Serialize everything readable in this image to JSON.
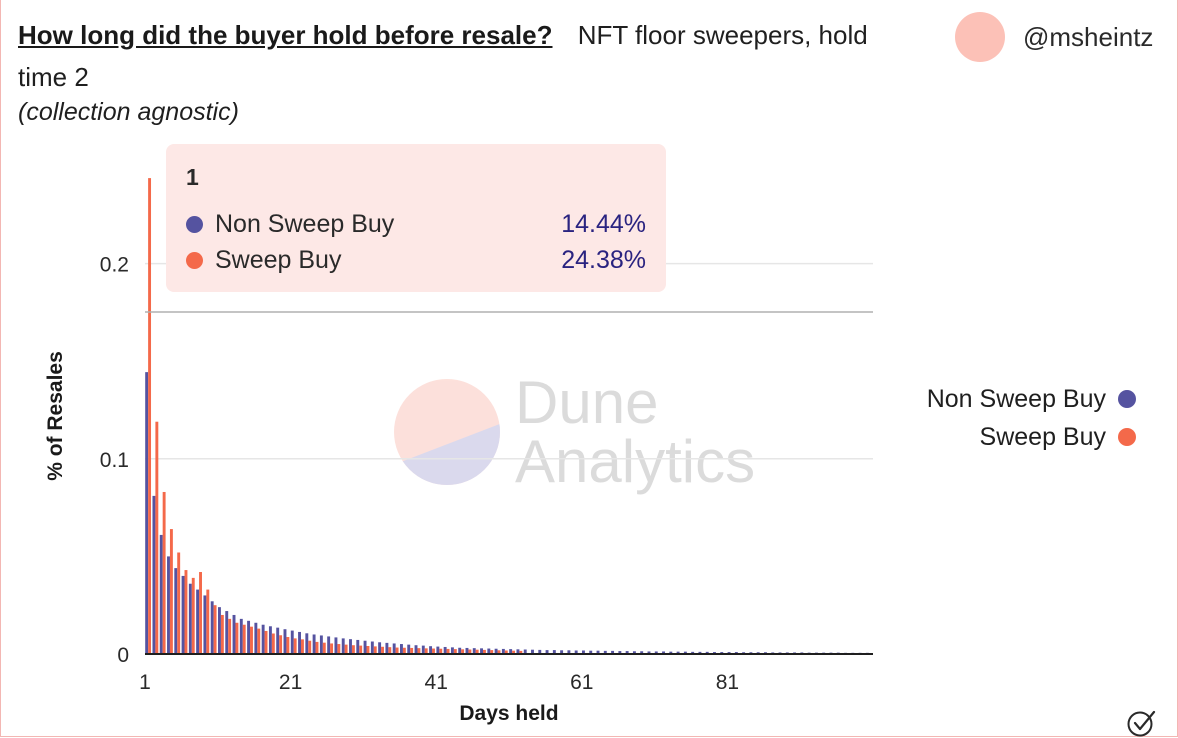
{
  "header": {
    "title": "How long did the buyer hold before resale?",
    "subtitle": "NFT floor sweepers, hold time 2",
    "note": "(collection agnostic)"
  },
  "user": {
    "handle": "@msheintz",
    "avatar_color": "#fcc1b7"
  },
  "watermark": {
    "line1": "Dune",
    "line2": "Analytics"
  },
  "tooltip": {
    "title": "1",
    "rows": [
      {
        "name": "Non Sweep Buy",
        "value": "14.44%"
      },
      {
        "name": "Sweep Buy",
        "value": "24.38%"
      }
    ]
  },
  "chart_data": {
    "type": "bar",
    "xlabel": "Days held",
    "ylabel": "% of Resales",
    "x_ticks": [
      "1",
      "21",
      "41",
      "61",
      "81"
    ],
    "y_ticks": [
      "0",
      "0.1",
      "0.2"
    ],
    "ylim": [
      0,
      0.25
    ],
    "xlim": [
      1,
      100
    ],
    "grid": true,
    "legend": "right",
    "colors": {
      "non_sweep": "#5553a0",
      "sweep": "#f4694a"
    },
    "series": [
      {
        "name": "Non Sweep Buy",
        "color": "#5553a0",
        "x": [
          1,
          2,
          3,
          4,
          5,
          6,
          7,
          8,
          9,
          10,
          11,
          12,
          13,
          14,
          15,
          16,
          17,
          18,
          19,
          20,
          21,
          22,
          23,
          24,
          25,
          26,
          27,
          28,
          29,
          30,
          31,
          32,
          33,
          34,
          35,
          36,
          37,
          38,
          39,
          40,
          41,
          42,
          43,
          44,
          45,
          46,
          47,
          48,
          49,
          50,
          51,
          52,
          53,
          54,
          55,
          56,
          57,
          58,
          59,
          60,
          61,
          62,
          63,
          64,
          65,
          66,
          67,
          68,
          69,
          70,
          71,
          72,
          73,
          74,
          75,
          76,
          77,
          78,
          79,
          80,
          81,
          82,
          83,
          84,
          85,
          86,
          87,
          88,
          89,
          90,
          91,
          92,
          93,
          94,
          95,
          96,
          97,
          98,
          99,
          100
        ],
        "values": [
          0.1444,
          0.081,
          0.061,
          0.05,
          0.044,
          0.04,
          0.036,
          0.033,
          0.03,
          0.027,
          0.024,
          0.022,
          0.02,
          0.018,
          0.017,
          0.016,
          0.015,
          0.0142,
          0.0135,
          0.0127,
          0.012,
          0.0113,
          0.0106,
          0.01,
          0.0095,
          0.009,
          0.0085,
          0.008,
          0.0076,
          0.0072,
          0.0068,
          0.0064,
          0.006,
          0.0057,
          0.0054,
          0.0051,
          0.0048,
          0.0045,
          0.0043,
          0.004,
          0.0038,
          0.0036,
          0.0034,
          0.0032,
          0.0031,
          0.003,
          0.0029,
          0.0028,
          0.0027,
          0.0026,
          0.0025,
          0.0024,
          0.0023,
          0.0022,
          0.0021,
          0.002,
          0.002,
          0.0019,
          0.0019,
          0.0018,
          0.0018,
          0.0017,
          0.0017,
          0.0016,
          0.0016,
          0.0015,
          0.0015,
          0.0014,
          0.0014,
          0.0013,
          0.0013,
          0.0013,
          0.0012,
          0.0012,
          0.0012,
          0.0011,
          0.0011,
          0.0011,
          0.001,
          0.001,
          0.001,
          0.001,
          0.0009,
          0.0009,
          0.0009,
          0.0009,
          0.0008,
          0.0008,
          0.0008,
          0.0008,
          0.0008,
          0.0007,
          0.0007,
          0.0007,
          0.0007,
          0.0007,
          0.0006,
          0.0006,
          0.0006,
          0.0006
        ]
      },
      {
        "name": "Sweep Buy",
        "color": "#f4694a",
        "x": [
          1,
          2,
          3,
          4,
          5,
          6,
          7,
          8,
          9,
          10,
          11,
          12,
          13,
          14,
          15,
          16,
          17,
          18,
          19,
          20,
          21,
          22,
          23,
          24,
          25,
          26,
          27,
          28,
          29,
          30,
          31,
          32,
          33,
          34,
          35,
          36,
          37,
          38,
          39,
          40,
          41,
          42,
          43,
          44,
          45,
          46,
          47,
          48,
          49,
          50,
          51,
          52
        ],
        "values": [
          0.2438,
          0.119,
          0.083,
          0.064,
          0.052,
          0.043,
          0.039,
          0.042,
          0.033,
          0.025,
          0.02,
          0.018,
          0.016,
          0.015,
          0.014,
          0.013,
          0.0118,
          0.0105,
          0.0096,
          0.0087,
          0.008,
          0.0075,
          0.0068,
          0.0062,
          0.0058,
          0.0054,
          0.0051,
          0.0048,
          0.0045,
          0.0043,
          0.0041,
          0.0039,
          0.0037,
          0.0035,
          0.0033,
          0.0032,
          0.0031,
          0.003,
          0.0029,
          0.0028,
          0.0027,
          0.0026,
          0.0025,
          0.0024,
          0.0023,
          0.0022,
          0.0021,
          0.002,
          0.0019,
          0.0018,
          0.0017,
          0.0016
        ]
      }
    ]
  }
}
